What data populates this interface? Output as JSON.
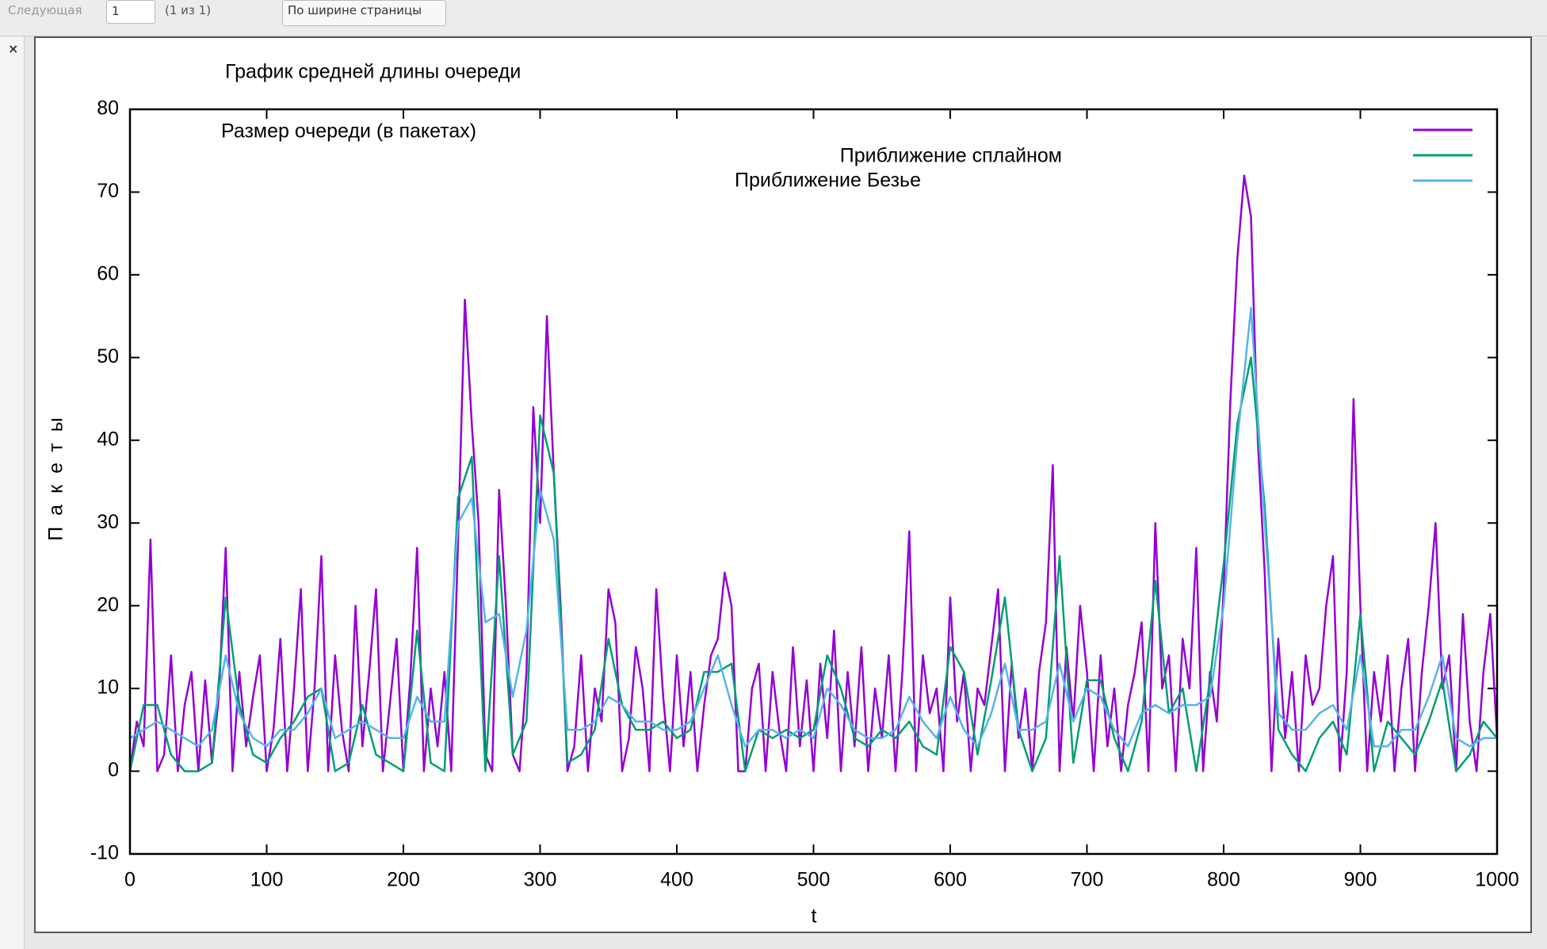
{
  "toolbar": {
    "next": "Следующая",
    "page": "1",
    "page_count": "(1 из 1)",
    "zoom": "По ширине страницы",
    "close": "×"
  },
  "chart_data": {
    "type": "line",
    "title": "График средней длины очереди",
    "xlabel": "t",
    "ylabel": "Пакеты",
    "xlim": [
      0,
      1000
    ],
    "xticks": [
      0,
      100,
      200,
      300,
      400,
      500,
      600,
      700,
      800,
      900,
      1000
    ],
    "ylim": [
      -10,
      80
    ],
    "yticks": [
      -10,
      0,
      10,
      20,
      30,
      40,
      50,
      60,
      70,
      80
    ],
    "series": [
      {
        "name": "Размер очереди (в пакетах)",
        "color": "#9400d3",
        "x": [
          0,
          5,
          10,
          15,
          20,
          25,
          30,
          35,
          40,
          45,
          50,
          55,
          60,
          65,
          70,
          75,
          80,
          85,
          90,
          95,
          100,
          105,
          110,
          115,
          120,
          125,
          130,
          135,
          140,
          145,
          150,
          155,
          160,
          165,
          170,
          175,
          180,
          185,
          190,
          195,
          200,
          205,
          210,
          215,
          220,
          225,
          230,
          235,
          240,
          245,
          250,
          255,
          260,
          265,
          270,
          275,
          280,
          285,
          290,
          295,
          300,
          305,
          310,
          315,
          320,
          325,
          330,
          335,
          340,
          345,
          350,
          355,
          360,
          365,
          370,
          375,
          380,
          385,
          390,
          395,
          400,
          405,
          410,
          415,
          420,
          425,
          430,
          435,
          440,
          445,
          450,
          455,
          460,
          465,
          470,
          475,
          480,
          485,
          490,
          495,
          500,
          505,
          510,
          515,
          520,
          525,
          530,
          535,
          540,
          545,
          550,
          555,
          560,
          565,
          570,
          575,
          580,
          585,
          590,
          595,
          600,
          605,
          610,
          615,
          620,
          625,
          630,
          635,
          640,
          645,
          650,
          655,
          660,
          665,
          670,
          675,
          680,
          685,
          690,
          695,
          700,
          705,
          710,
          715,
          720,
          725,
          730,
          735,
          740,
          745,
          750,
          755,
          760,
          765,
          770,
          775,
          780,
          785,
          790,
          795,
          800,
          805,
          810,
          815,
          820,
          825,
          830,
          835,
          840,
          845,
          850,
          855,
          860,
          865,
          870,
          875,
          880,
          885,
          890,
          895,
          900,
          905,
          910,
          915,
          920,
          925,
          930,
          935,
          940,
          945,
          950,
          955,
          960,
          965,
          970,
          975,
          980,
          985,
          990,
          995,
          1000
        ],
        "values": [
          0,
          6,
          3,
          28,
          0,
          2,
          14,
          0,
          8,
          12,
          0,
          11,
          1,
          9,
          27,
          0,
          12,
          3,
          9,
          14,
          0,
          5,
          16,
          0,
          10,
          22,
          0,
          10,
          26,
          0,
          14,
          5,
          0,
          20,
          3,
          12,
          22,
          0,
          8,
          16,
          0,
          11,
          27,
          0,
          10,
          3,
          12,
          0,
          28,
          57,
          42,
          30,
          2,
          0,
          34,
          20,
          2,
          0,
          12,
          44,
          30,
          55,
          36,
          20,
          0,
          3,
          14,
          0,
          10,
          6,
          22,
          18,
          0,
          4,
          15,
          10,
          0,
          22,
          9,
          0,
          14,
          3,
          12,
          0,
          8,
          14,
          16,
          24,
          20,
          0,
          0,
          10,
          13,
          0,
          12,
          5,
          0,
          15,
          3,
          11,
          0,
          13,
          4,
          17,
          0,
          12,
          3,
          15,
          0,
          10,
          4,
          14,
          0,
          12,
          29,
          0,
          14,
          7,
          10,
          0,
          21,
          6,
          12,
          0,
          10,
          8,
          15,
          22,
          0,
          13,
          4,
          10,
          0,
          12,
          18,
          37,
          0,
          15,
          6,
          20,
          12,
          0,
          14,
          3,
          10,
          0,
          8,
          12,
          18,
          0,
          30,
          10,
          14,
          0,
          16,
          10,
          27,
          0,
          12,
          6,
          22,
          45,
          62,
          72,
          67,
          40,
          24,
          0,
          16,
          4,
          12,
          0,
          14,
          8,
          10,
          20,
          26,
          0,
          12,
          45,
          20,
          0,
          12,
          6,
          14,
          0,
          10,
          16,
          0,
          12,
          20,
          30,
          10,
          14,
          0,
          19,
          6,
          0,
          12,
          19,
          4
        ]
      },
      {
        "name": "Приближение сплайном",
        "color": "#009e73",
        "x": [
          0,
          10,
          20,
          30,
          40,
          50,
          60,
          70,
          80,
          90,
          100,
          110,
          120,
          130,
          140,
          150,
          160,
          170,
          180,
          190,
          200,
          210,
          220,
          230,
          240,
          250,
          260,
          270,
          280,
          290,
          300,
          310,
          320,
          330,
          340,
          350,
          360,
          370,
          380,
          390,
          400,
          410,
          420,
          430,
          440,
          450,
          460,
          470,
          480,
          490,
          500,
          510,
          520,
          530,
          540,
          550,
          560,
          570,
          580,
          590,
          600,
          610,
          620,
          630,
          640,
          650,
          660,
          670,
          680,
          690,
          700,
          710,
          720,
          730,
          740,
          750,
          760,
          770,
          780,
          790,
          800,
          810,
          820,
          830,
          840,
          850,
          860,
          870,
          880,
          890,
          900,
          910,
          920,
          930,
          940,
          950,
          960,
          970,
          980,
          990,
          1000
        ],
        "values": [
          0,
          8,
          8,
          2,
          0,
          0,
          1,
          21,
          8,
          2,
          1,
          4,
          6,
          9,
          10,
          0,
          1,
          8,
          2,
          1,
          0,
          17,
          1,
          0,
          33,
          38,
          0,
          26,
          2,
          6,
          43,
          36,
          1,
          2,
          5,
          16,
          8,
          5,
          5,
          6,
          4,
          5,
          12,
          12,
          13,
          0,
          5,
          4,
          5,
          4,
          5,
          14,
          10,
          4,
          3,
          5,
          4,
          6,
          3,
          2,
          15,
          12,
          2,
          11,
          21,
          5,
          0,
          4,
          26,
          1,
          11,
          11,
          4,
          0,
          6,
          23,
          7,
          10,
          0,
          11,
          25,
          42,
          50,
          32,
          5,
          2,
          0,
          4,
          6,
          2,
          19,
          0,
          6,
          4,
          2,
          6,
          11,
          0,
          2,
          6,
          4
        ]
      },
      {
        "name": "Приближение Безье",
        "color": "#56b4e9",
        "x": [
          0,
          10,
          20,
          30,
          40,
          50,
          60,
          70,
          80,
          90,
          100,
          110,
          120,
          130,
          140,
          150,
          160,
          170,
          180,
          190,
          200,
          210,
          220,
          230,
          240,
          250,
          260,
          270,
          280,
          290,
          300,
          310,
          320,
          330,
          340,
          350,
          360,
          370,
          380,
          390,
          400,
          410,
          420,
          430,
          440,
          450,
          460,
          470,
          480,
          490,
          500,
          510,
          520,
          530,
          540,
          550,
          560,
          570,
          580,
          590,
          600,
          610,
          620,
          630,
          640,
          650,
          660,
          670,
          680,
          690,
          700,
          710,
          720,
          730,
          740,
          750,
          760,
          770,
          780,
          790,
          800,
          810,
          820,
          830,
          840,
          850,
          860,
          870,
          880,
          890,
          900,
          910,
          920,
          930,
          940,
          950,
          960,
          970,
          980,
          990,
          1000
        ],
        "values": [
          4,
          5,
          6,
          5,
          4,
          3,
          5,
          14,
          7,
          4,
          3,
          5,
          5,
          7,
          10,
          4,
          5,
          6,
          5,
          4,
          4,
          9,
          6,
          6,
          30,
          33,
          18,
          19,
          9,
          17,
          34,
          28,
          5,
          5,
          6,
          9,
          8,
          6,
          6,
          5,
          5,
          6,
          10,
          14,
          8,
          3,
          5,
          5,
          4,
          5,
          4,
          10,
          8,
          5,
          4,
          4,
          5,
          9,
          6,
          4,
          9,
          5,
          3,
          7,
          13,
          5,
          5,
          6,
          13,
          6,
          10,
          9,
          5,
          3,
          7,
          8,
          7,
          8,
          8,
          9,
          20,
          40,
          56,
          30,
          7,
          5,
          5,
          7,
          8,
          5,
          14,
          3,
          3,
          5,
          5,
          9,
          14,
          4,
          3,
          4,
          4
        ]
      }
    ]
  }
}
